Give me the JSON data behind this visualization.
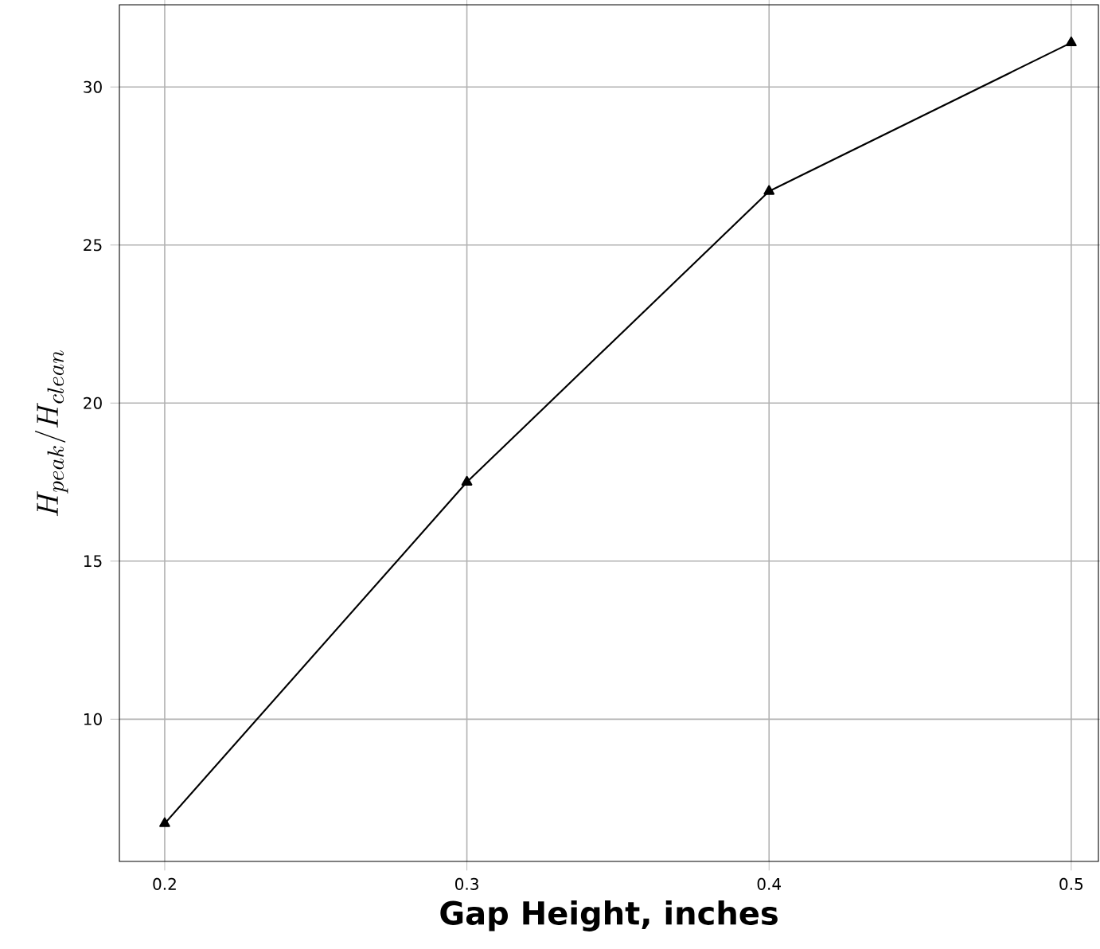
{
  "chart_data": {
    "type": "line",
    "xlabel": "**Gap Height, inches**",
    "ylabel": "H_{peak}/H_{clean}",
    "x": [
      0.2,
      0.3,
      0.4,
      0.5
    ],
    "series": [
      {
        "color": "#000000",
        "values": [
          6.7,
          17.5,
          26.7,
          31.4
        ]
      }
    ],
    "marker": "triangle",
    "line_style": "solid",
    "grid": true,
    "xlim": [
      0.185,
      0.509
    ],
    "ylim": [
      5.5,
      32.6
    ],
    "xticks": [
      0.2,
      0.3,
      0.4,
      0.5
    ],
    "yticks": [
      10,
      15,
      20,
      25,
      30
    ]
  }
}
